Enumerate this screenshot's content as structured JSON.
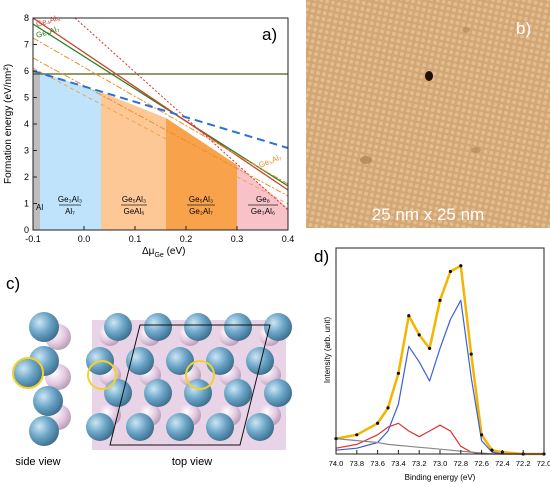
{
  "panel_a": {
    "letter": "a)",
    "ylabel": "Formation energy (eV/nm²)",
    "xlabel": "Δμ",
    "xlabel_sub": "Ge",
    "xlabel_unit": " (eV)",
    "xticks": [
      "-0.1",
      "0.0",
      "0.1",
      "0.2",
      "0.3",
      "0.4"
    ],
    "yticks": [
      "0",
      "1",
      "2",
      "3",
      "4",
      "5",
      "6",
      "7",
      "8"
    ],
    "curve_labels": {
      "ge4al5": "Ge₄Al₅",
      "ge5al7_top": "Ge₅Al₇",
      "ge5al7_right": "Ge₅Al₇"
    },
    "regions": [
      {
        "top": "Al",
        "bottom": ""
      },
      {
        "top": "Ge₃Al₃",
        "bottom": "Al₇"
      },
      {
        "top": "Ge₅Al₃",
        "bottom": "GeAl₆"
      },
      {
        "top": "Ge₅Al₃",
        "bottom": "Ge₂Al₇"
      },
      {
        "top": "Ge₈",
        "bottom": "Ge₃Al₆"
      }
    ],
    "colors": {
      "al": "#bdbdbd",
      "r1": "#bfe3fb",
      "r2": "#fdc896",
      "r3": "#f9a24c",
      "r4": "#f7c3c9",
      "green": "#2e7d1f",
      "olive": "#4f5d12",
      "red": "#d2352f",
      "orange": "#ee8d27",
      "blue": "#2f6fd6"
    }
  },
  "panel_b": {
    "letter": "b)",
    "caption": "25 nm x 25 nm"
  },
  "panel_c": {
    "letter": "c)",
    "side": "side view",
    "top": "top view",
    "colors": {
      "ge": "#6ea7c9",
      "al": "#e3c9e0",
      "ring": "#f3d12b"
    }
  },
  "panel_d": {
    "letter": "d)",
    "ylabel": "Intensity (arb. unit)",
    "xlabel": "Binding energy (eV)",
    "xticks": [
      "74.0",
      "73.8",
      "73.6",
      "73.4",
      "73.2",
      "73.0",
      "72.8",
      "72.6",
      "72.4",
      "72.2",
      "72.0"
    ],
    "chart_data": {
      "type": "line",
      "xlabel": "Binding energy (eV)",
      "ylabel": "Intensity (arb. unit)",
      "xlim": [
        74.0,
        72.0
      ],
      "x": [
        74.0,
        73.8,
        73.6,
        73.5,
        73.4,
        73.3,
        73.2,
        73.1,
        73.0,
        72.9,
        72.8,
        72.7,
        72.6,
        72.5,
        72.4,
        72.2,
        72.0
      ],
      "series": [
        {
          "color": "#f4b400",
          "values": [
            0.08,
            0.1,
            0.16,
            0.24,
            0.42,
            0.72,
            0.62,
            0.55,
            0.8,
            0.95,
            0.98,
            0.52,
            0.1,
            0.02,
            0.01,
            0.0,
            0.0
          ]
        },
        {
          "color": "#3a5fd8",
          "values": [
            0.02,
            0.03,
            0.06,
            0.12,
            0.26,
            0.56,
            0.48,
            0.38,
            0.55,
            0.7,
            0.8,
            0.4,
            0.07,
            0.01,
            0.0,
            0.0,
            0.0
          ]
        },
        {
          "color": "#e0322c",
          "values": [
            0.03,
            0.05,
            0.1,
            0.14,
            0.16,
            0.12,
            0.09,
            0.12,
            0.15,
            0.12,
            0.04,
            0.01,
            0.0,
            0.0,
            0.0,
            0.0,
            0.0
          ]
        },
        {
          "color": "#888888",
          "values": [
            0.08,
            0.07,
            0.06,
            0.05,
            0.045,
            0.04,
            0.035,
            0.03,
            0.025,
            0.02,
            0.015,
            0.01,
            0.005,
            0.0,
            0.0,
            0.0,
            0.0
          ]
        }
      ]
    }
  }
}
